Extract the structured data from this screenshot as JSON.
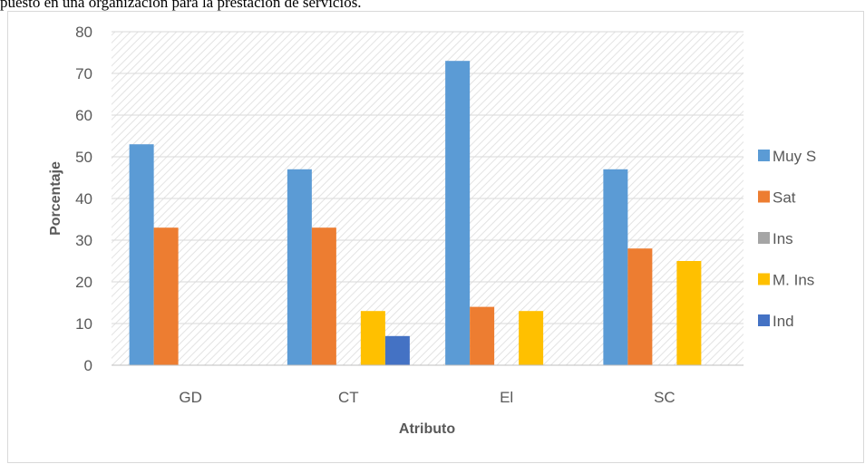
{
  "caption": "puesto en una organización para la prestación de servicios.",
  "chart_data": {
    "type": "bar",
    "title": "",
    "xlabel": "Atributo",
    "ylabel": "Porcentaje",
    "ylim": [
      0,
      80
    ],
    "yticks": [
      0,
      10,
      20,
      30,
      40,
      50,
      60,
      70,
      80
    ],
    "categories": [
      "GD",
      "CT",
      "El",
      "SC"
    ],
    "series": [
      {
        "name": "Muy S",
        "color": "#5b9bd5",
        "values": [
          53,
          47,
          73,
          47
        ]
      },
      {
        "name": "Sat",
        "color": "#ed7d31",
        "values": [
          33,
          33,
          14,
          28
        ]
      },
      {
        "name": "Ins",
        "color": "#a5a5a5",
        "values": [
          0,
          0,
          0,
          0
        ]
      },
      {
        "name": "M. Ins",
        "color": "#ffc000",
        "values": [
          0,
          13,
          13,
          25
        ]
      },
      {
        "name": "Ind",
        "color": "#4472c4",
        "values": [
          0,
          7,
          0,
          0
        ]
      }
    ],
    "legend_position": "right",
    "grid": true
  }
}
